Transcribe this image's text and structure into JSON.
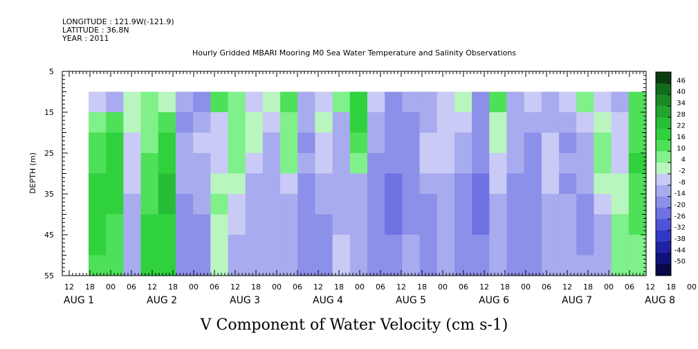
{
  "header": {
    "longitude": "LONGITUDE : 121.9W(-121.9)",
    "latitude": "LATITUDE : 36.8N",
    "year": "YEAR : 2011"
  },
  "chart_data": {
    "type": "heatmap",
    "title": "Hourly Gridded MBARI Mooring M0 Sea Water Temperature and Salinity Observations",
    "xlabel": "V Component of Water Velocity (cm s-1)",
    "ylabel": "DEPTH (m)",
    "y_ticks": [
      5,
      15,
      25,
      35,
      45,
      55
    ],
    "ylim": [
      55,
      5
    ],
    "x_hour_ticks": [
      "12",
      "18",
      "00",
      "06",
      "12",
      "18",
      "00",
      "06",
      "12",
      "18",
      "00",
      "06",
      "12",
      "18",
      "00",
      "06",
      "12",
      "18",
      "00",
      "06",
      "12",
      "18",
      "00",
      "06",
      "12",
      "18",
      "00",
      "06",
      "12",
      "18",
      "00",
      "06"
    ],
    "x_day_labels": [
      {
        "label": "AUG",
        "day": "1"
      },
      {
        "label": "AUG",
        "day": "2"
      },
      {
        "label": "AUG",
        "day": "3"
      },
      {
        "label": "AUG",
        "day": "4"
      },
      {
        "label": "AUG",
        "day": "5"
      },
      {
        "label": "AUG",
        "day": "6"
      },
      {
        "label": "AUG",
        "day": "7"
      },
      {
        "label": "AUG",
        "day": "8"
      }
    ],
    "time_range": [
      "AUG 1 12:00",
      "AUG 8 12:00"
    ],
    "data_time_range": [
      "AUG 1 18:00",
      "AUG 8 10:00"
    ],
    "data_depth_range": [
      10,
      55
    ],
    "colorbar_levels": [
      48,
      46,
      40,
      34,
      28,
      22,
      16,
      10,
      4,
      -2,
      -8,
      -14,
      -20,
      -26,
      -32,
      -38,
      -44,
      -50
    ],
    "colorbar_labels": [
      "46",
      "40",
      "34",
      "28",
      "22",
      "16",
      "10",
      "4",
      "-2",
      "-8",
      "-14",
      "-20",
      "-26",
      "-32",
      "-38",
      "-44",
      "-50"
    ],
    "colorbar_colors": [
      "#0a3d12",
      "#136b1c",
      "#1b8a24",
      "#22a52e",
      "#28bd36",
      "#2fd23d",
      "#4fe05a",
      "#7ff08a",
      "#b9f5bf",
      "#c9caf5",
      "#a9abef",
      "#8d90e9",
      "#6f72e2",
      "#4f53d8",
      "#3338c4",
      "#1f23a3",
      "#10127a",
      "#070848"
    ],
    "rows_top_to_bottom": [
      [
        -6,
        -10,
        4,
        8,
        3,
        -10,
        -14,
        12,
        6,
        -4,
        2,
        14,
        -8,
        -4,
        6,
        18,
        -6,
        -14,
        -12,
        -8,
        -6,
        2,
        -14,
        12,
        -10,
        -4,
        -12,
        -4,
        8,
        -2,
        -8,
        14
      ],
      [
        8,
        14,
        2,
        10,
        16,
        -14,
        -8,
        -6,
        8,
        4,
        -6,
        10,
        -10,
        2,
        -8,
        20,
        -8,
        -16,
        -14,
        -8,
        -4,
        -6,
        -14,
        4,
        -8,
        -12,
        -10,
        -10,
        -6,
        4,
        -6,
        12
      ],
      [
        12,
        18,
        -4,
        8,
        18,
        -12,
        -6,
        -6,
        10,
        2,
        -10,
        8,
        -14,
        -2,
        -12,
        14,
        -10,
        -16,
        -16,
        -6,
        -2,
        -8,
        -16,
        2,
        -10,
        -14,
        -6,
        -14,
        -8,
        8,
        -6,
        16
      ],
      [
        16,
        20,
        -6,
        14,
        20,
        -10,
        -8,
        -2,
        6,
        -4,
        -12,
        6,
        -12,
        -4,
        -12,
        6,
        -14,
        -18,
        -18,
        -4,
        -6,
        -12,
        -18,
        -2,
        -12,
        -14,
        -2,
        -12,
        -12,
        6,
        -2,
        18
      ],
      [
        18,
        22,
        -6,
        12,
        24,
        -12,
        -10,
        2,
        2,
        -8,
        -10,
        -4,
        -14,
        -8,
        -12,
        -8,
        -16,
        -20,
        -18,
        -10,
        -10,
        -14,
        -20,
        -6,
        -14,
        -16,
        -6,
        -14,
        -12,
        2,
        0,
        16
      ],
      [
        20,
        20,
        -8,
        16,
        24,
        -14,
        -12,
        6,
        -2,
        -10,
        -12,
        -8,
        -16,
        -12,
        -10,
        -10,
        -18,
        -20,
        -16,
        -14,
        -12,
        -16,
        -20,
        -8,
        -16,
        -18,
        -10,
        -12,
        -14,
        -4,
        4,
        14
      ],
      [
        20,
        16,
        -10,
        18,
        22,
        -16,
        -14,
        4,
        -6,
        -12,
        -12,
        -10,
        -18,
        -14,
        -8,
        -12,
        -18,
        -20,
        -14,
        -14,
        -12,
        -18,
        -20,
        -10,
        -16,
        -18,
        -12,
        -10,
        -14,
        -8,
        8,
        12
      ],
      [
        18,
        14,
        -12,
        20,
        22,
        -16,
        -16,
        2,
        -8,
        -12,
        -12,
        -12,
        -18,
        -14,
        -6,
        -12,
        -18,
        -18,
        -12,
        -16,
        -12,
        -18,
        -18,
        -12,
        -16,
        -16,
        -12,
        -8,
        -14,
        -10,
        10,
        10
      ],
      [
        16,
        12,
        -12,
        18,
        18,
        -16,
        -16,
        0,
        -8,
        -12,
        -10,
        -12,
        -16,
        -14,
        -6,
        -12,
        -16,
        -16,
        -10,
        -14,
        -10,
        -16,
        -16,
        -12,
        -14,
        -14,
        -12,
        -8,
        -12,
        -10,
        10,
        8
      ]
    ]
  }
}
